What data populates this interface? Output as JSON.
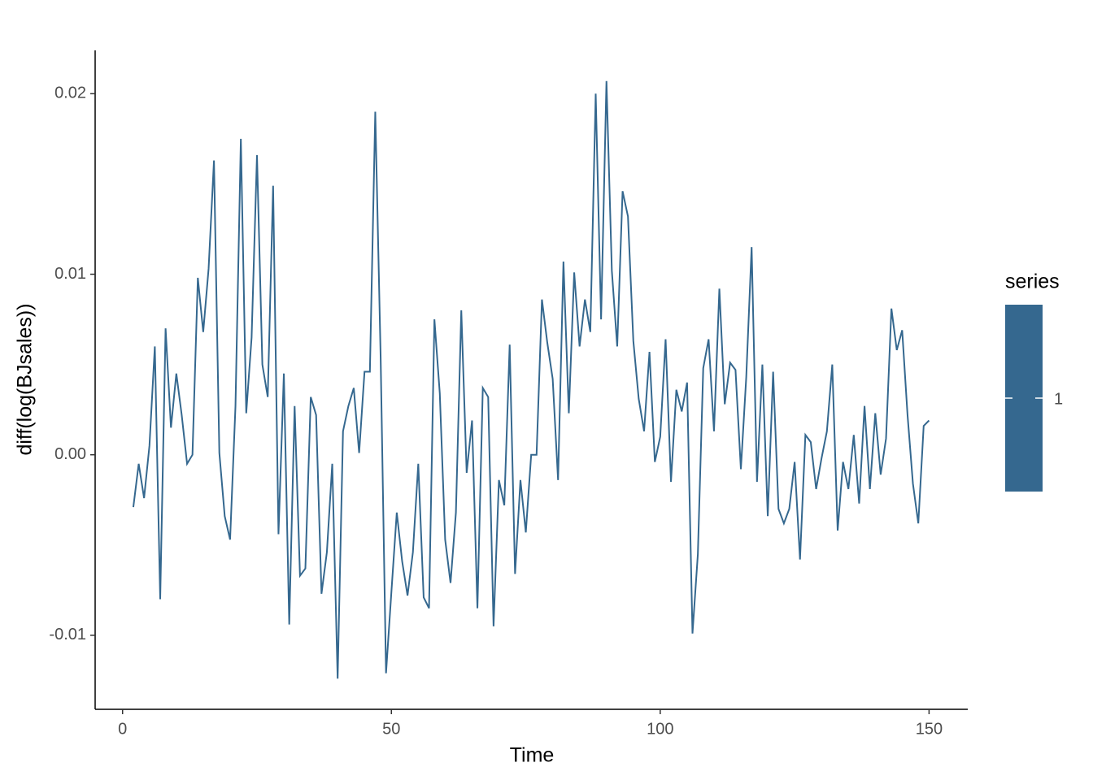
{
  "chart_data": {
    "type": "line",
    "x_label": "Time",
    "y_label": "diff(log(BJsales))",
    "legend_title": "series",
    "legend": "right",
    "x": [
      2,
      3,
      4,
      5,
      6,
      7,
      8,
      9,
      10,
      11,
      12,
      13,
      14,
      15,
      16,
      17,
      18,
      19,
      20,
      21,
      22,
      23,
      24,
      25,
      26,
      27,
      28,
      29,
      30,
      31,
      32,
      33,
      34,
      35,
      36,
      37,
      38,
      39,
      40,
      41,
      42,
      43,
      44,
      45,
      46,
      47,
      48,
      49,
      50,
      51,
      52,
      53,
      54,
      55,
      56,
      57,
      58,
      59,
      60,
      61,
      62,
      63,
      64,
      65,
      66,
      67,
      68,
      69,
      70,
      71,
      72,
      73,
      74,
      75,
      76,
      77,
      78,
      79,
      80,
      81,
      82,
      83,
      84,
      85,
      86,
      87,
      88,
      89,
      90,
      91,
      92,
      93,
      94,
      95,
      96,
      97,
      98,
      99,
      100,
      101,
      102,
      103,
      104,
      105,
      106,
      107,
      108,
      109,
      110,
      111,
      112,
      113,
      114,
      115,
      116,
      117,
      118,
      119,
      120,
      121,
      122,
      123,
      124,
      125,
      126,
      127,
      128,
      129,
      130,
      131,
      132,
      133,
      134,
      135,
      136,
      137,
      138,
      139,
      140,
      141,
      142,
      143,
      144,
      145,
      146,
      147,
      148,
      149,
      150
    ],
    "series": [
      {
        "name": "1",
        "color": "#35688f",
        "values": [
          -0.0029,
          -0.0005,
          -0.0024,
          0.0005,
          0.006,
          -0.008,
          0.007,
          0.0015,
          0.0045,
          0.0022,
          -0.0005,
          0.0,
          0.0098,
          0.0068,
          0.0103,
          0.0163,
          0.0001,
          -0.0034,
          -0.0047,
          0.0027,
          0.0175,
          0.0023,
          0.0065,
          0.0166,
          0.005,
          0.0032,
          0.0149,
          -0.0044,
          0.0045,
          -0.0094,
          0.0027,
          -0.0067,
          -0.0063,
          0.0032,
          0.0022,
          -0.0077,
          -0.0054,
          -0.0005,
          -0.0124,
          0.0013,
          0.0027,
          0.0037,
          0.0001,
          0.0046,
          0.0046,
          0.019,
          0.0054,
          -0.0121,
          -0.0076,
          -0.0032,
          -0.0059,
          -0.0078,
          -0.0054,
          -0.0005,
          -0.0079,
          -0.0085,
          0.0075,
          0.0034,
          -0.0047,
          -0.0071,
          -0.0032,
          0.008,
          -0.001,
          0.0019,
          -0.0085,
          0.0037,
          0.0032,
          -0.0095,
          -0.0014,
          -0.0028,
          0.0061,
          -0.0066,
          -0.0014,
          -0.0043,
          0.0,
          0.0,
          0.0086,
          0.0062,
          0.0042,
          -0.0014,
          0.0107,
          0.0023,
          0.0101,
          0.006,
          0.0086,
          0.0068,
          0.02,
          0.0075,
          0.0207,
          0.0102,
          0.006,
          0.0146,
          0.0132,
          0.0063,
          0.0031,
          0.0013,
          0.0057,
          -0.0004,
          0.001,
          0.0064,
          -0.0015,
          0.0036,
          0.0024,
          0.004,
          -0.0099,
          -0.0055,
          0.0048,
          0.0064,
          0.0013,
          0.0092,
          0.0028,
          0.0051,
          0.0047,
          -0.0008,
          0.0043,
          0.0115,
          -0.0015,
          0.005,
          -0.0034,
          0.0046,
          -0.003,
          -0.0038,
          -0.003,
          -0.0004,
          -0.0058,
          0.0011,
          0.0007,
          -0.0019,
          -0.0002,
          0.0013,
          0.005,
          -0.0042,
          -0.0004,
          -0.0019,
          0.0011,
          -0.0027,
          0.0027,
          -0.0019,
          0.0023,
          -0.0011,
          0.0009,
          0.0081,
          0.0058,
          0.0069,
          0.0022,
          -0.0016,
          -0.0038,
          0.0016,
          0.0019
        ]
      }
    ],
    "xlim": [
      -5.1,
      157.2
    ],
    "xticks": [
      0,
      50,
      100,
      150
    ],
    "ylim": [
      -0.0141,
      0.0224
    ],
    "yticks": [
      -0.01,
      {
        "value": 0,
        "label": "0.00"
      },
      0.01,
      0.02
    ],
    "grid": false
  }
}
